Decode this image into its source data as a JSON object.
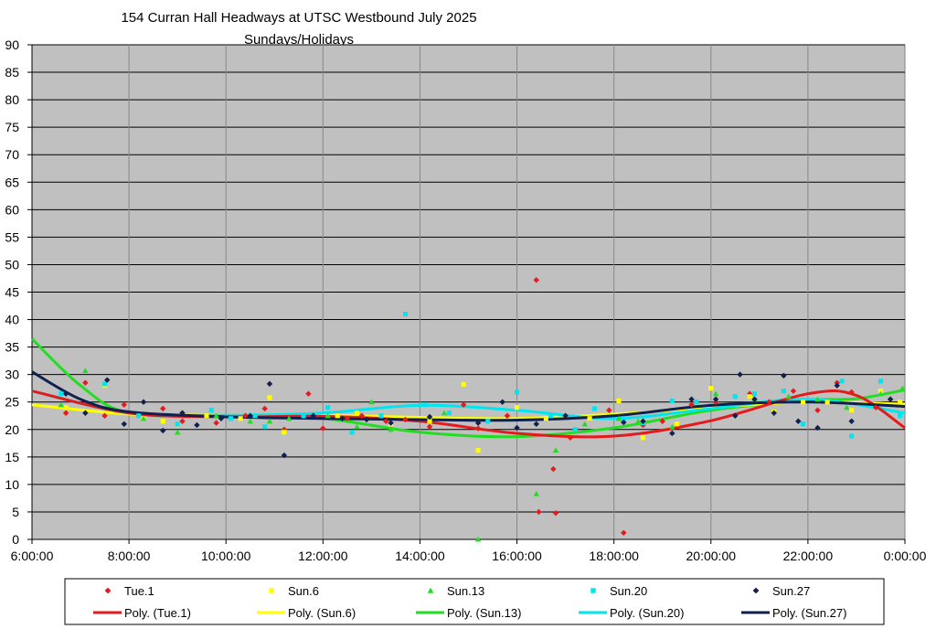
{
  "chart_data": {
    "type": "scatter",
    "title": "154 Curran Hall Headways at UTSC Westbound July 2025",
    "subtitle": "Sundays/Holidays",
    "xlabel": "",
    "ylabel": "",
    "xlim_hours": [
      6,
      24
    ],
    "ylim": [
      0,
      90
    ],
    "y_ticks": [
      "0",
      "5",
      "10",
      "15",
      "20",
      "25",
      "30",
      "35",
      "40",
      "45",
      "50",
      "55",
      "60",
      "65",
      "70",
      "75",
      "80",
      "85",
      "90"
    ],
    "x_ticks": [
      "6:00:00",
      "8:00:00",
      "10:00:00",
      "12:00:00",
      "14:00:00",
      "16:00:00",
      "18:00:00",
      "20:00:00",
      "22:00:00",
      "0:00:00"
    ],
    "grid": true,
    "legend_position": "bottom",
    "plot_background": "#c0c0c0",
    "series": [
      {
        "name": "Tue.1",
        "color": "#e41a1c",
        "marker": "diamond",
        "points": [
          [
            6.7,
            23
          ],
          [
            7.1,
            28.5
          ],
          [
            7.5,
            22.5
          ],
          [
            7.9,
            24.5
          ],
          [
            8.7,
            23.8
          ],
          [
            9.1,
            21.5
          ],
          [
            9.8,
            21.2
          ],
          [
            10.4,
            22.5
          ],
          [
            10.8,
            23.8
          ],
          [
            11.2,
            20
          ],
          [
            11.7,
            26.5
          ],
          [
            12.0,
            20.2
          ],
          [
            12.5,
            22
          ],
          [
            12.8,
            22.5
          ],
          [
            13.3,
            21.5
          ],
          [
            13.7,
            21.8
          ],
          [
            14.2,
            20.5
          ],
          [
            14.9,
            24.5
          ],
          [
            15.2,
            20.2
          ],
          [
            15.8,
            22.5
          ],
          [
            16.4,
            47.2
          ],
          [
            16.45,
            5
          ],
          [
            16.75,
            12.8
          ],
          [
            16.8,
            4.8
          ],
          [
            17.1,
            18.5
          ],
          [
            17.5,
            22
          ],
          [
            17.9,
            23.5
          ],
          [
            18.2,
            1.2
          ],
          [
            18.6,
            20.8
          ],
          [
            19.0,
            21.5
          ],
          [
            19.6,
            24.5
          ],
          [
            20.1,
            25
          ],
          [
            20.8,
            26.5
          ],
          [
            21.2,
            25
          ],
          [
            21.7,
            27
          ],
          [
            22.2,
            23.5
          ],
          [
            22.6,
            28.5
          ],
          [
            22.9,
            26.8
          ],
          [
            23.4,
            24
          ],
          [
            23.7,
            25.5
          ]
        ],
        "trend": [
          [
            6,
            27
          ],
          [
            8,
            23
          ],
          [
            10,
            22.3
          ],
          [
            12,
            22.4
          ],
          [
            14,
            21.5
          ],
          [
            16,
            19.3
          ],
          [
            18,
            18.8
          ],
          [
            20,
            21.6
          ],
          [
            22,
            26.5
          ],
          [
            23,
            26.2
          ],
          [
            24,
            20.3
          ]
        ]
      },
      {
        "name": "Sun.6",
        "color": "#ffff00",
        "marker": "square",
        "points": [
          [
            6.7,
            24
          ],
          [
            7.5,
            28
          ],
          [
            8.3,
            22
          ],
          [
            8.7,
            21.5
          ],
          [
            9.0,
            21
          ],
          [
            9.6,
            22.5
          ],
          [
            10.3,
            22
          ],
          [
            10.9,
            25.8
          ],
          [
            11.2,
            19.5
          ],
          [
            12.3,
            22.5
          ],
          [
            12.7,
            23
          ],
          [
            13.4,
            21
          ],
          [
            14.2,
            21.5
          ],
          [
            14.9,
            28.2
          ],
          [
            15.2,
            16.2
          ],
          [
            16.0,
            24
          ],
          [
            16.6,
            22
          ],
          [
            17.5,
            22
          ],
          [
            18.1,
            25.2
          ],
          [
            18.6,
            18.5
          ],
          [
            19.3,
            21
          ],
          [
            20.0,
            27.5
          ],
          [
            20.8,
            26
          ],
          [
            21.3,
            23.2
          ],
          [
            21.9,
            25
          ],
          [
            22.4,
            25
          ],
          [
            22.9,
            23.5
          ],
          [
            23.5,
            27
          ],
          [
            23.9,
            25
          ]
        ],
        "trend": [
          [
            6,
            24.5
          ],
          [
            8,
            22.8
          ],
          [
            10,
            22.6
          ],
          [
            12,
            22.6
          ],
          [
            14,
            22.2
          ],
          [
            16,
            22
          ],
          [
            18,
            22.8
          ],
          [
            20,
            24
          ],
          [
            22,
            25
          ],
          [
            24,
            24.6
          ]
        ]
      },
      {
        "name": "Sun.13",
        "color": "#22dd22",
        "marker": "triangle",
        "points": [
          [
            6.6,
            24.5
          ],
          [
            7.1,
            30.7
          ],
          [
            8.3,
            22
          ],
          [
            9.0,
            19.5
          ],
          [
            9.8,
            22.5
          ],
          [
            10.5,
            21.5
          ],
          [
            10.9,
            21.5
          ],
          [
            11.3,
            22
          ],
          [
            12.1,
            22.5
          ],
          [
            12.7,
            20.5
          ],
          [
            13.0,
            25
          ],
          [
            13.4,
            20
          ],
          [
            14.5,
            23
          ],
          [
            15.2,
            0
          ],
          [
            16.4,
            8.3
          ],
          [
            16.8,
            16.2
          ],
          [
            17.4,
            21
          ],
          [
            18.1,
            22
          ],
          [
            18.5,
            21.5
          ],
          [
            19.2,
            20.5
          ],
          [
            19.7,
            25
          ],
          [
            20.1,
            26.5
          ],
          [
            20.9,
            25.5
          ],
          [
            21.6,
            26
          ],
          [
            22.2,
            25.5
          ],
          [
            22.8,
            24
          ],
          [
            23.5,
            26.5
          ],
          [
            23.95,
            27.5
          ]
        ],
        "trend": [
          [
            6,
            36.5
          ],
          [
            7,
            28
          ],
          [
            8,
            23
          ],
          [
            10,
            22.5
          ],
          [
            12,
            22
          ],
          [
            14,
            19.5
          ],
          [
            16,
            18.7
          ],
          [
            18,
            20.3
          ],
          [
            20,
            23.5
          ],
          [
            22,
            25.3
          ],
          [
            23,
            25.6
          ],
          [
            24,
            27.2
          ]
        ]
      },
      {
        "name": "Sun.20",
        "color": "#00e5ee",
        "marker": "square",
        "points": [
          [
            6.6,
            26.5
          ],
          [
            7.5,
            28.3
          ],
          [
            8.2,
            22.5
          ],
          [
            9.0,
            21
          ],
          [
            9.7,
            23.5
          ],
          [
            10.1,
            22
          ],
          [
            10.6,
            22.5
          ],
          [
            10.8,
            20.5
          ],
          [
            11.6,
            22.5
          ],
          [
            12.1,
            24
          ],
          [
            12.6,
            19.5
          ],
          [
            13.2,
            22.5
          ],
          [
            13.7,
            41
          ],
          [
            14.1,
            24.5
          ],
          [
            14.6,
            23
          ],
          [
            15.4,
            21.5
          ],
          [
            16.0,
            26.8
          ],
          [
            16.7,
            22.5
          ],
          [
            17.2,
            20
          ],
          [
            17.6,
            23.8
          ],
          [
            18.2,
            22
          ],
          [
            18.6,
            21.2
          ],
          [
            19.2,
            25.2
          ],
          [
            19.7,
            25
          ],
          [
            20.5,
            26
          ],
          [
            20.9,
            26.5
          ],
          [
            21.5,
            27
          ],
          [
            21.9,
            21
          ],
          [
            22.7,
            28.8
          ],
          [
            22.9,
            18.8
          ],
          [
            23.5,
            28.8
          ],
          [
            23.9,
            22.5
          ]
        ],
        "trend": [
          [
            6,
            27
          ],
          [
            8,
            23
          ],
          [
            10,
            22.6
          ],
          [
            12,
            23
          ],
          [
            14,
            24.4
          ],
          [
            16,
            23.5
          ],
          [
            18,
            22
          ],
          [
            20,
            23.8
          ],
          [
            22,
            25.5
          ],
          [
            24,
            23
          ]
        ]
      },
      {
        "name": "Sun.27",
        "color": "#10204f",
        "marker": "diamond",
        "points": [
          [
            6.7,
            26.5
          ],
          [
            7.1,
            23
          ],
          [
            7.55,
            29
          ],
          [
            7.9,
            21
          ],
          [
            8.3,
            25
          ],
          [
            8.7,
            19.8
          ],
          [
            9.1,
            23
          ],
          [
            9.4,
            20.8
          ],
          [
            9.9,
            22
          ],
          [
            10.5,
            22.5
          ],
          [
            10.9,
            28.3
          ],
          [
            11.2,
            15.3
          ],
          [
            11.8,
            22.5
          ],
          [
            12.4,
            22
          ],
          [
            12.9,
            21.8
          ],
          [
            13.4,
            21.2
          ],
          [
            14.2,
            22.3
          ],
          [
            15.2,
            21.2
          ],
          [
            15.7,
            25
          ],
          [
            16.0,
            20.3
          ],
          [
            16.4,
            21
          ],
          [
            17.0,
            22.5
          ],
          [
            18.2,
            21.3
          ],
          [
            18.6,
            21.5
          ],
          [
            19.2,
            19.3
          ],
          [
            19.6,
            25.5
          ],
          [
            20.1,
            25.5
          ],
          [
            20.5,
            22.5
          ],
          [
            20.6,
            30
          ],
          [
            20.9,
            25.5
          ],
          [
            21.3,
            23
          ],
          [
            21.5,
            29.8
          ],
          [
            21.8,
            21.5
          ],
          [
            22.2,
            20.3
          ],
          [
            22.6,
            28
          ],
          [
            22.9,
            21.5
          ],
          [
            23.7,
            25.5
          ]
        ],
        "trend": [
          [
            6,
            30.5
          ],
          [
            7,
            25.5
          ],
          [
            8,
            23.2
          ],
          [
            10,
            22.3
          ],
          [
            12,
            22
          ],
          [
            14,
            21.8
          ],
          [
            16,
            21.7
          ],
          [
            18,
            22.5
          ],
          [
            20,
            24.4
          ],
          [
            22,
            25
          ],
          [
            24,
            24.2
          ]
        ]
      }
    ]
  },
  "legend": {
    "markers": [
      "Tue.1",
      "Sun.6",
      "Sun.13",
      "Sun.20",
      "Sun.27"
    ],
    "trends": [
      "Poly. (Tue.1)",
      "Poly. (Sun.6)",
      "Poly. (Sun.13)",
      "Poly. (Sun.20)",
      "Poly. (Sun.27)"
    ]
  }
}
